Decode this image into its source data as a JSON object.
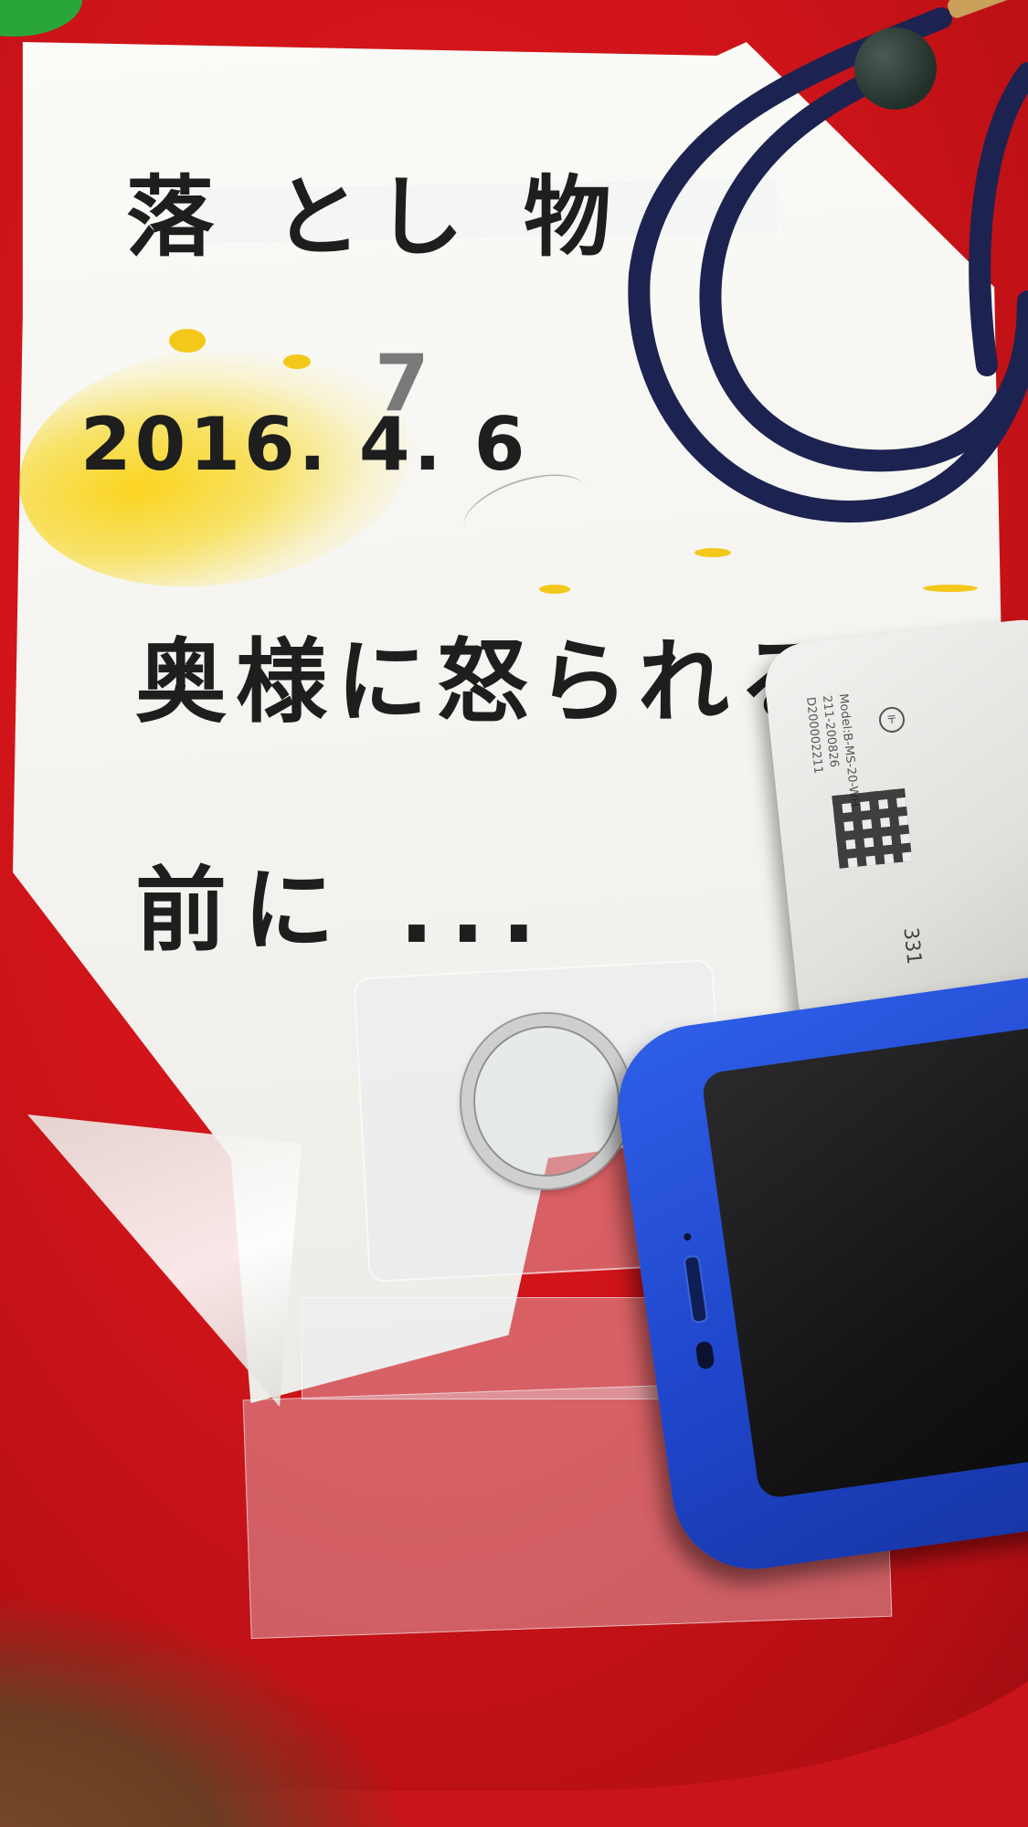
{
  "photo": {
    "note": {
      "line_1": "落 とし 物",
      "line_2": "2016. 4. 6",
      "line_2_struck_digit": "7",
      "line_3": "奥様に怒られる",
      "line_4": "前に ..."
    },
    "device_label": {
      "model": "Model:B-MS-20-WH",
      "code_1": "211-200826",
      "code_2": "D200002211",
      "id_fragment": "331"
    },
    "colors": {
      "table": "#c8141a",
      "paper": "#f4f3ef",
      "ink": "#1e1e1e",
      "paint": "#f4c81a",
      "cord": "#1d2350",
      "phone": "#2a55dd"
    },
    "icons": {
      "ring": "ring-icon"
    }
  }
}
